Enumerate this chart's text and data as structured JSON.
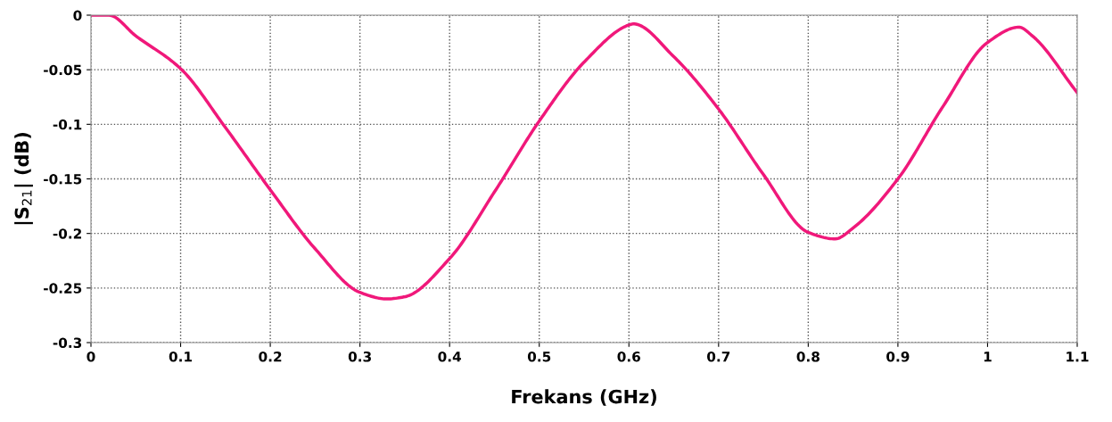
{
  "chart_data": {
    "type": "line",
    "xlabel": "Frekans (GHz)",
    "ylabel": "|S$_{21}$| (dB)",
    "x": [
      0,
      0.02,
      0.05,
      0.1,
      0.15,
      0.2,
      0.25,
      0.3,
      0.33,
      0.35,
      0.4,
      0.45,
      0.5,
      0.55,
      0.6,
      0.605,
      0.65,
      0.7,
      0.75,
      0.8,
      0.83,
      0.85,
      0.9,
      0.95,
      1,
      1.035,
      1.05,
      1.1
    ],
    "series": [
      {
        "color": "#f0187a",
        "values": [
          0,
          0,
          -0.019,
          -0.049,
          -0.103,
          -0.16,
          -0.214,
          -0.254,
          -0.26,
          -0.258,
          -0.223,
          -0.162,
          -0.097,
          -0.043,
          -0.009,
          -0.008,
          -0.038,
          -0.086,
          -0.146,
          -0.199,
          -0.205,
          -0.195,
          -0.15,
          -0.084,
          -0.025,
          -0.011,
          -0.019,
          -0.071
        ]
      }
    ],
    "xlim": [
      0,
      1.1
    ],
    "xticks": [
      0,
      0.1,
      0.2,
      0.3,
      0.4,
      0.5,
      0.6,
      0.7,
      0.8,
      0.9,
      1,
      1.1
    ],
    "ylim": [
      -0.3,
      0
    ],
    "yticks": [
      0,
      -0.05,
      -0.1,
      -0.15,
      -0.2,
      -0.25,
      -0.3
    ],
    "grid": true,
    "marker": "none",
    "line_style": "solid",
    "legend": false
  }
}
